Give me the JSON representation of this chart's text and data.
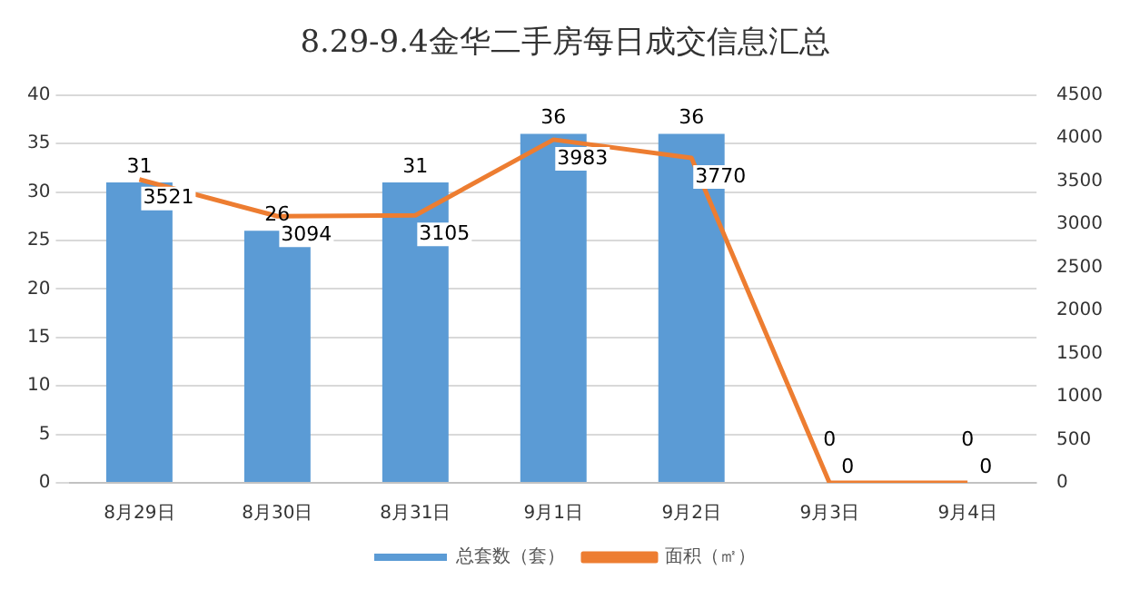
{
  "chart_data": {
    "type": "bar",
    "title": "8.29-9.4金华二手房每日成交信息汇总",
    "categories": [
      "8月29日",
      "8月30日",
      "8月31日",
      "9月1日",
      "9月2日",
      "9月3日",
      "9月4日"
    ],
    "series": [
      {
        "name": "总套数（套）",
        "color": "#5b9bd5",
        "values": [
          31,
          26,
          31,
          36,
          36,
          0,
          0
        ]
      },
      {
        "name": "面积（㎡）",
        "type": "line",
        "axis": "y2",
        "color": "#ed7d31",
        "values": [
          3521,
          3094,
          3105,
          3983,
          3770,
          0,
          0
        ]
      }
    ],
    "ylim": [
      0,
      40
    ],
    "yticks": [
      0,
      5,
      10,
      15,
      20,
      25,
      30,
      35,
      40
    ],
    "y2lim": [
      0,
      4500
    ],
    "y2ticks": [
      0,
      500,
      1000,
      1500,
      2000,
      2500,
      3000,
      3500,
      4000,
      4500
    ],
    "grid": "y",
    "legend": "bottom",
    "data_labels": true,
    "marker": "none"
  }
}
